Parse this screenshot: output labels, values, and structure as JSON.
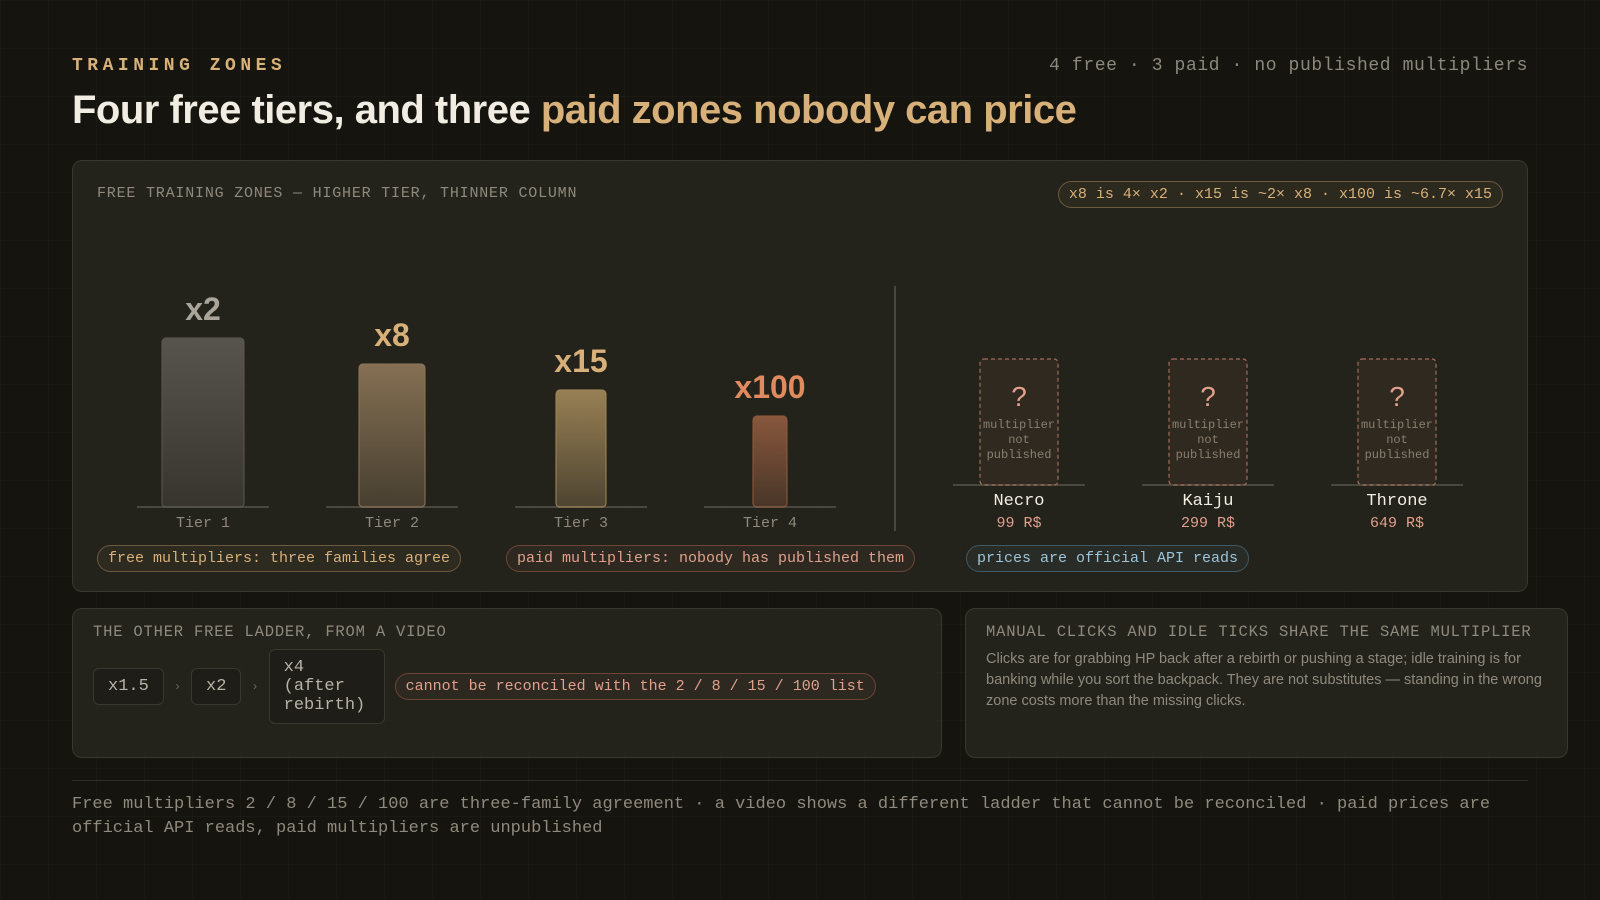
{
  "header": {
    "eyebrow": "TRAINING ZONES",
    "meta": "4 free · 3 paid · no published multipliers",
    "title_lead": "Four free tiers, and three ",
    "title_accent": "paid zones nobody can price"
  },
  "main_panel": {
    "label": "FREE TRAINING ZONES — HIGHER TIER, THINNER COLUMN",
    "ratio_note": "x8 is 4× x2 · x15 is ~2× x8 · x100 is ~6.7× x15",
    "pills": {
      "free": "free multipliers: three families agree",
      "paid": "paid multipliers: nobody has published them",
      "api": "prices are official API reads"
    }
  },
  "chart_data": {
    "type": "bar",
    "title": "FREE TRAINING ZONES — HIGHER TIER, THINNER COLUMN",
    "categories": [
      "Tier 1",
      "Tier 2",
      "Tier 3",
      "Tier 4"
    ],
    "multipliers": [
      2,
      8,
      15,
      100
    ],
    "value_labels": [
      "x2",
      "x8",
      "x15",
      "x100"
    ],
    "bar_colors": [
      "#5a5750",
      "#8a7456",
      "#9e8558",
      "#8e5a3f"
    ],
    "label_colors": [
      "#a9a59b",
      "#d8b079",
      "#d8b079",
      "#e08a5f"
    ],
    "paid_zones": [
      {
        "name": "Necro",
        "price": "99 R$",
        "mark": "?",
        "note": "multiplier not published"
      },
      {
        "name": "Kaiju",
        "price": "299 R$",
        "mark": "?",
        "note": "multiplier not published"
      },
      {
        "name": "Throne",
        "price": "649 R$",
        "mark": "?",
        "note": "multiplier not published"
      }
    ]
  },
  "other_ladder": {
    "label": "THE OTHER FREE LADDER, FROM A VIDEO",
    "steps": [
      "x1.5",
      "x2",
      "x4\n(after\nrebirth)"
    ],
    "warning": "cannot be reconciled with the 2 / 8 / 15 / 100 list"
  },
  "manual_idle": {
    "label": "MANUAL CLICKS AND IDLE TICKS SHARE THE SAME MULTIPLIER",
    "text": "Clicks are for grabbing HP back after a rebirth or pushing a stage; idle training is for banking while you sort the backpack. They are not substitutes — standing in the wrong zone costs more than the missing clicks."
  },
  "footer": {
    "text": "Free multipliers 2 / 8 / 15 / 100 are three-family agreement · a video shows a different ladder that cannot be reconciled · paid prices are official API reads, paid multipliers are unpublished"
  }
}
